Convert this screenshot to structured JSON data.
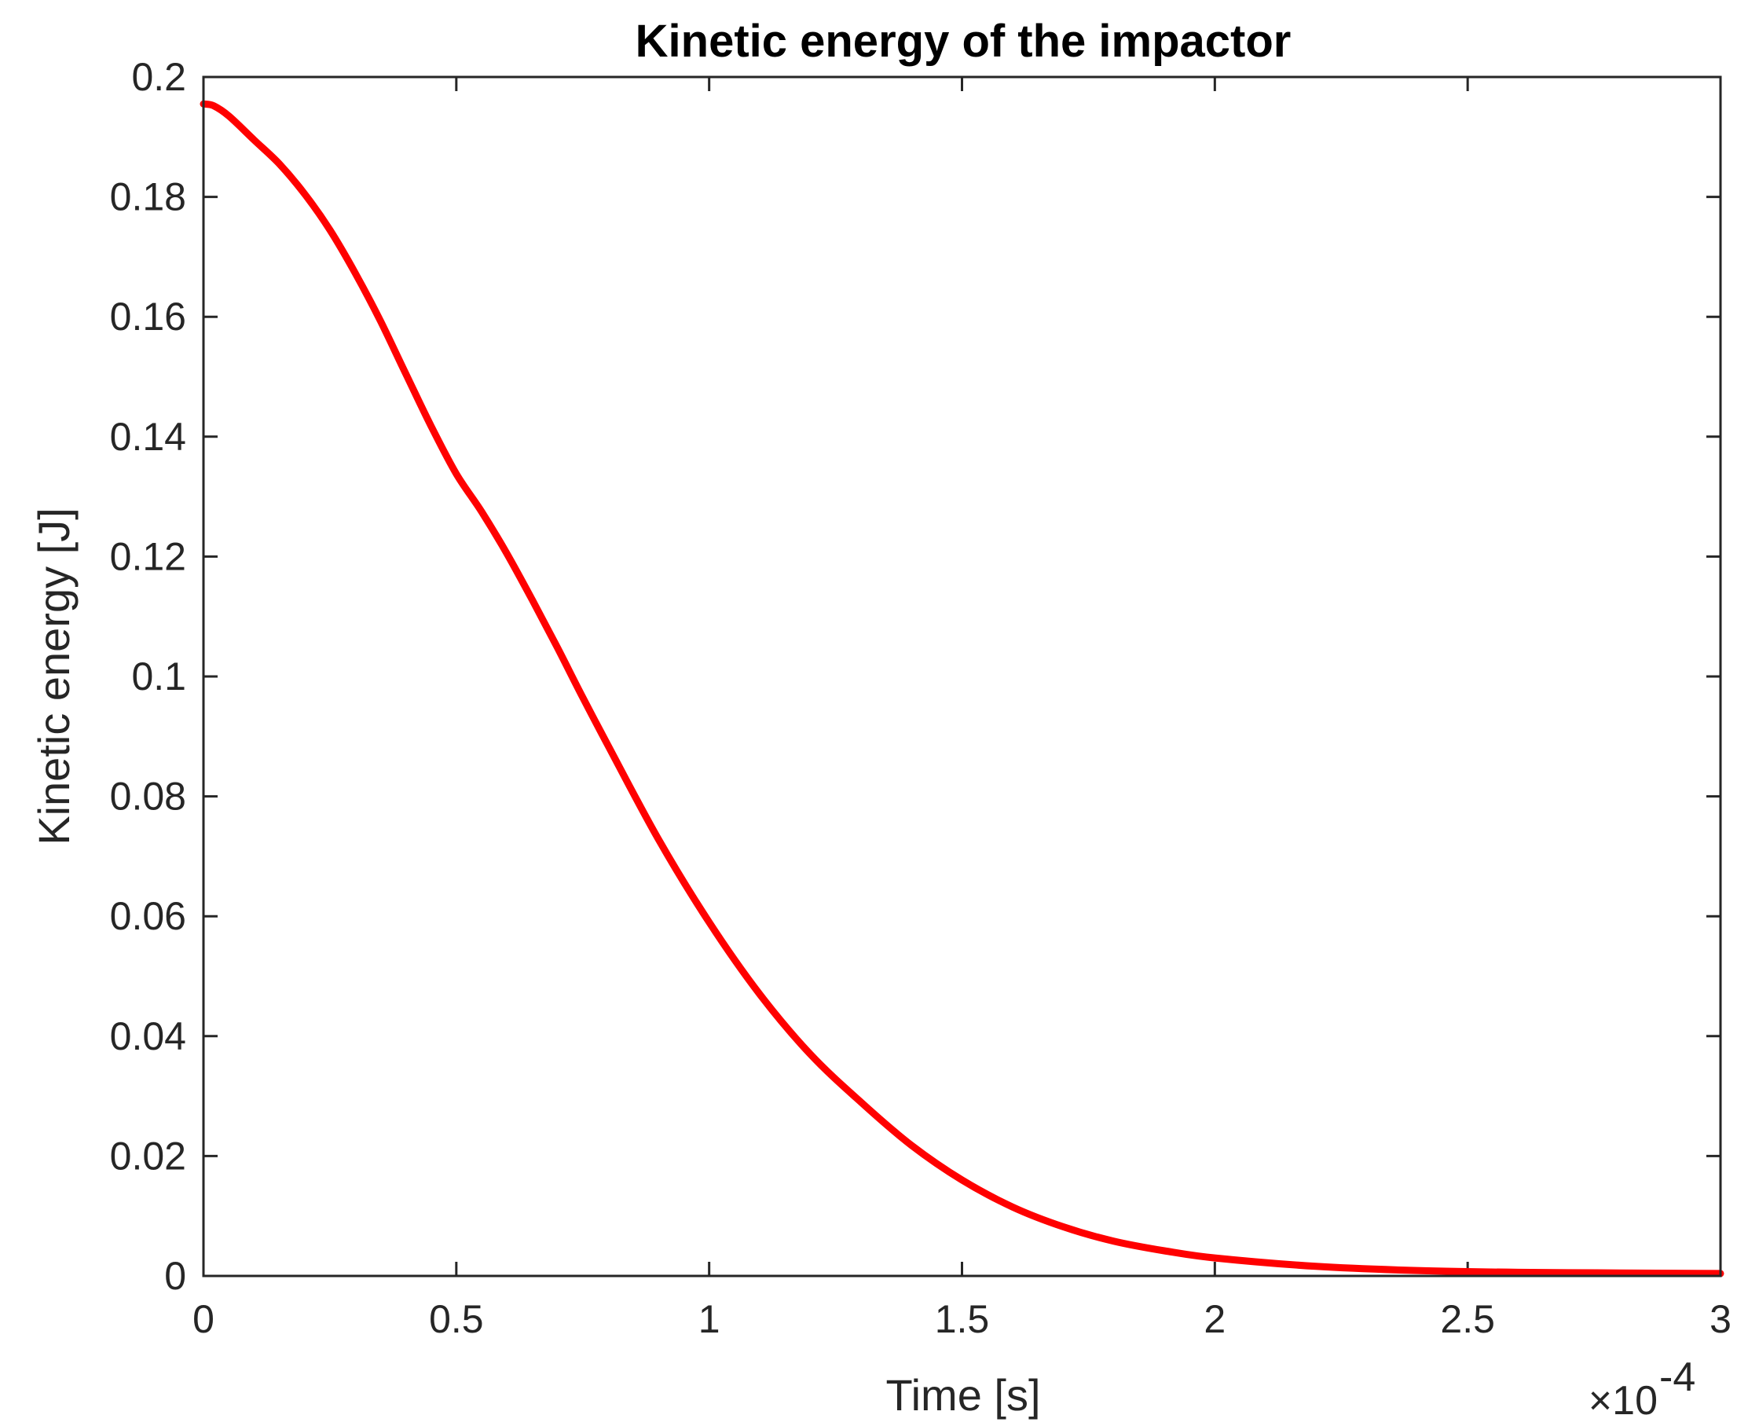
{
  "chart_data": {
    "type": "line",
    "title": "Kinetic energy of the impactor",
    "xlabel": "Time [s]",
    "ylabel": "Kinetic energy [J]",
    "x_exponent_base": "×10",
    "x_exponent_power": "-4",
    "xlim": [
      0,
      3
    ],
    "ylim": [
      0,
      0.2
    ],
    "x_ticks": [
      "0",
      "0.5",
      "1",
      "1.5",
      "2",
      "2.5",
      "3"
    ],
    "y_ticks": [
      "0",
      "0.02",
      "0.04",
      "0.06",
      "0.08",
      "0.1",
      "0.12",
      "0.14",
      "0.16",
      "0.18",
      "0.2"
    ],
    "x_tick_values": [
      0,
      0.5,
      1,
      1.5,
      2,
      2.5,
      3
    ],
    "y_tick_values": [
      0,
      0.02,
      0.04,
      0.06,
      0.08,
      0.1,
      0.12,
      0.14,
      0.16,
      0.18,
      0.2
    ],
    "grid": false,
    "series": [
      {
        "color": "#ff0000",
        "x": [
          0,
          0.02,
          0.05,
          0.1,
          0.15,
          0.2,
          0.25,
          0.3,
          0.35,
          0.4,
          0.45,
          0.5,
          0.55,
          0.6,
          0.65,
          0.7,
          0.75,
          0.8,
          0.9,
          1.0,
          1.1,
          1.2,
          1.3,
          1.4,
          1.5,
          1.6,
          1.7,
          1.8,
          1.9,
          2.0,
          2.2,
          2.4,
          2.6,
          2.8,
          3.0
        ],
        "y": [
          0.1955,
          0.1952,
          0.1935,
          0.1895,
          0.1855,
          0.1805,
          0.1745,
          0.1673,
          0.1593,
          0.1505,
          0.1418,
          0.1338,
          0.1275,
          0.1205,
          0.1128,
          0.1048,
          0.0965,
          0.0885,
          0.0728,
          0.059,
          0.047,
          0.037,
          0.029,
          0.0218,
          0.016,
          0.0115,
          0.0082,
          0.0058,
          0.0042,
          0.003,
          0.0016,
          0.0009,
          0.0006,
          0.0005,
          0.0004
        ]
      }
    ]
  }
}
